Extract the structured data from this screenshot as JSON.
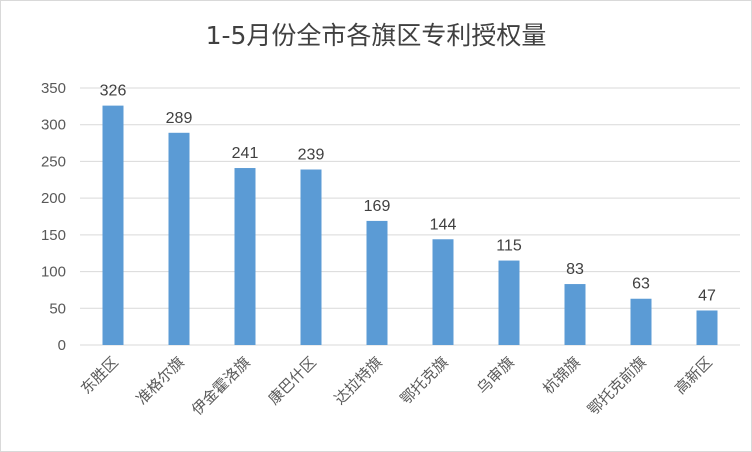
{
  "chart_data": {
    "type": "bar",
    "title": "1-5月份全市各旗区专利授权量",
    "xlabel": "",
    "ylabel": "",
    "categories": [
      "东胜区",
      "准格尔旗",
      "伊金霍洛旗",
      "康巴什区",
      "达拉特旗",
      "鄂托克旗",
      "乌审旗",
      "杭锦旗",
      "鄂托克前旗",
      "高新区"
    ],
    "values": [
      326,
      289,
      241,
      239,
      169,
      144,
      115,
      83,
      63,
      47
    ],
    "ylim": [
      0,
      350
    ],
    "yticks": [
      0,
      50,
      100,
      150,
      200,
      250,
      300,
      350
    ],
    "grid": true,
    "legend": "none",
    "bar_color": "#5b9bd5",
    "grid_color": "#d9d9d9"
  }
}
